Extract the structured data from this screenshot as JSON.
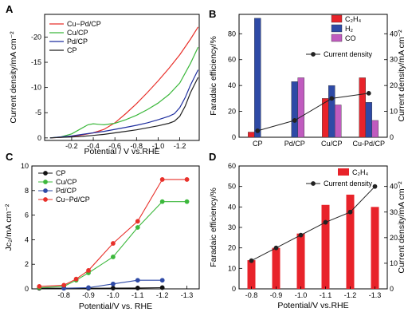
{
  "chart_data": [
    {
      "panel": "A",
      "type": "line",
      "xlabel": "Potential / V vs.RHE",
      "ylabel": "Current density/mA cm⁻²",
      "xlim": [
        0.05,
        -1.38
      ],
      "ylim": [
        0.5,
        -24.5
      ],
      "xticks": [
        -0.2,
        -0.4,
        -0.6,
        -0.8,
        -1.0,
        -1.2
      ],
      "xtick_labels": [
        "-0.2",
        "-0.4",
        "-0.6",
        "-0.8",
        "-1.0",
        "-1.2"
      ],
      "yticks": [
        0,
        -5,
        -10,
        -15,
        -20
      ],
      "ytick_labels": [
        "0",
        "-5",
        "-10",
        "-15",
        "-20"
      ],
      "grid": false,
      "legend_position": "top-left",
      "series": [
        {
          "name": "Cu−Pd/CP",
          "color": "#e8302a",
          "x": [
            0.0,
            -0.1,
            -0.2,
            -0.3,
            -0.4,
            -0.5,
            -0.6,
            -0.7,
            -0.8,
            -0.9,
            -1.0,
            -1.1,
            -1.2,
            -1.3,
            -1.37
          ],
          "y": [
            0,
            -0.1,
            -0.3,
            -0.6,
            -1.0,
            -1.7,
            -3.0,
            -4.8,
            -6.8,
            -9.0,
            -11.3,
            -13.8,
            -16.5,
            -19.6,
            -22.0
          ]
        },
        {
          "name": "Cu/CP",
          "color": "#3cb83c",
          "x": [
            0.0,
            -0.1,
            -0.2,
            -0.3,
            -0.35,
            -0.4,
            -0.45,
            -0.5,
            -0.6,
            -0.7,
            -0.8,
            -0.9,
            -1.0,
            -1.1,
            -1.2,
            -1.3,
            -1.37
          ],
          "y": [
            0,
            -0.2,
            -0.8,
            -2.0,
            -2.6,
            -2.8,
            -2.7,
            -2.6,
            -2.9,
            -3.6,
            -4.5,
            -5.6,
            -6.9,
            -8.6,
            -10.9,
            -14.8,
            -18.0
          ]
        },
        {
          "name": "Pd/CP",
          "color": "#1f2f9f",
          "x": [
            0.0,
            -0.1,
            -0.2,
            -0.3,
            -0.4,
            -0.5,
            -0.6,
            -0.7,
            -0.8,
            -0.9,
            -1.0,
            -1.1,
            -1.15,
            -1.2,
            -1.25,
            -1.3,
            -1.37
          ],
          "y": [
            0,
            -0.2,
            -0.4,
            -0.7,
            -1.0,
            -1.3,
            -1.7,
            -2.1,
            -2.5,
            -3.0,
            -3.6,
            -4.3,
            -4.8,
            -6.0,
            -8.0,
            -10.5,
            -13.5
          ]
        },
        {
          "name": "CP",
          "color": "#222222",
          "x": [
            0.0,
            -0.1,
            -0.2,
            -0.3,
            -0.4,
            -0.5,
            -0.6,
            -0.7,
            -0.8,
            -0.9,
            -1.0,
            -1.1,
            -1.15,
            -1.2,
            -1.25,
            -1.3,
            -1.37
          ],
          "y": [
            0,
            -0.1,
            -0.2,
            -0.3,
            -0.5,
            -0.7,
            -1.0,
            -1.3,
            -1.6,
            -2.0,
            -2.4,
            -2.9,
            -3.3,
            -4.3,
            -6.3,
            -9.0,
            -12.0
          ]
        }
      ]
    },
    {
      "panel": "B",
      "type": "bar",
      "categories": [
        "CP",
        "Pd/CP",
        "Cu/CP",
        "Cu-Pd/CP"
      ],
      "ylabel": "Faradaic efficiency/%",
      "y2label": "Current density/mA cm⁻²",
      "ylim": [
        0,
        95
      ],
      "yticks": [
        0,
        20,
        40,
        60,
        80
      ],
      "y2lim": [
        0,
        47.5
      ],
      "y2ticks": [
        0,
        10,
        20,
        30,
        40
      ],
      "grid": false,
      "legend_position": "top-right",
      "series": [
        {
          "name": "C₂H₄",
          "color": "#e8232a",
          "values": [
            4,
            0,
            30,
            46
          ]
        },
        {
          "name": "H₂",
          "color": "#2e4aa6",
          "values": [
            92,
            43,
            40,
            27
          ]
        },
        {
          "name": "CO",
          "color": "#c05bbf",
          "values": [
            0,
            46,
            25,
            13
          ]
        }
      ],
      "line_series": {
        "name": "Current density",
        "color": "#222222",
        "values": [
          2.5,
          6.5,
          15.0,
          17.0
        ]
      }
    },
    {
      "panel": "C",
      "type": "line",
      "xlabel": "Potential/V vs. RHE",
      "ylabel": "Jᴄ₂/mA cm⁻²",
      "xlim": [
        -0.67,
        -1.35
      ],
      "ylim": [
        0,
        10
      ],
      "xticks": [
        -0.8,
        -0.9,
        -1.0,
        -1.1,
        -1.2,
        -1.3
      ],
      "xtick_labels": [
        "-0.8",
        "-0.9",
        "-1.0",
        "-1.1",
        "-1.2",
        "-1.3"
      ],
      "yticks": [
        0,
        2,
        4,
        6,
        8,
        10
      ],
      "ytick_labels": [
        "0",
        "2",
        "4",
        "6",
        "8",
        "10"
      ],
      "grid": false,
      "legend_position": "top-left",
      "series": [
        {
          "name": "CP",
          "color": "#111111",
          "x": [
            -0.7,
            -0.8,
            -0.9,
            -1.0,
            -1.1,
            -1.2
          ],
          "y": [
            0.05,
            0.05,
            0.05,
            0.06,
            0.07,
            0.1
          ]
        },
        {
          "name": "Cu/CP",
          "color": "#3cb83c",
          "x": [
            -0.7,
            -0.8,
            -0.85,
            -0.9,
            -1.0,
            -1.1,
            -1.2,
            -1.3
          ],
          "y": [
            0.1,
            0.2,
            0.7,
            1.3,
            2.6,
            5.0,
            7.1,
            7.1
          ]
        },
        {
          "name": "Pd/CP",
          "color": "#2e4aa6",
          "x": [
            -0.8,
            -0.9,
            -1.0,
            -1.1,
            -1.2
          ],
          "y": [
            0.05,
            0.1,
            0.4,
            0.7,
            0.7
          ]
        },
        {
          "name": "Cu−Pd/CP",
          "color": "#e8302a",
          "x": [
            -0.7,
            -0.8,
            -0.85,
            -0.9,
            -1.0,
            -1.1,
            -1.2,
            -1.3
          ],
          "y": [
            0.2,
            0.3,
            0.8,
            1.5,
            3.7,
            5.5,
            8.9,
            8.9
          ]
        }
      ]
    },
    {
      "panel": "D",
      "type": "bar",
      "categories": [
        "-0.8",
        "-0.9",
        "-1.0",
        "-1.1",
        "-1.2",
        "-1.3"
      ],
      "xlabel": "Potential/V vs.RHE",
      "ylabel": "Faradaic efficiency/%",
      "y2label": "Current density/mA cm⁻²",
      "ylim": [
        0,
        60
      ],
      "yticks": [
        0,
        10,
        20,
        30,
        40,
        50,
        60
      ],
      "y2lim": [
        0,
        48
      ],
      "y2ticks": [
        0,
        10,
        20,
        30,
        40
      ],
      "grid": false,
      "legend_position": "top-right",
      "series": [
        {
          "name": "C₂H₄",
          "color": "#e8232a",
          "values": [
            14,
            20,
            27,
            41,
            46,
            40
          ]
        }
      ],
      "line_series": {
        "name": "Current density",
        "color": "#222222",
        "values": [
          11,
          16,
          21,
          26,
          30,
          40
        ]
      }
    }
  ]
}
